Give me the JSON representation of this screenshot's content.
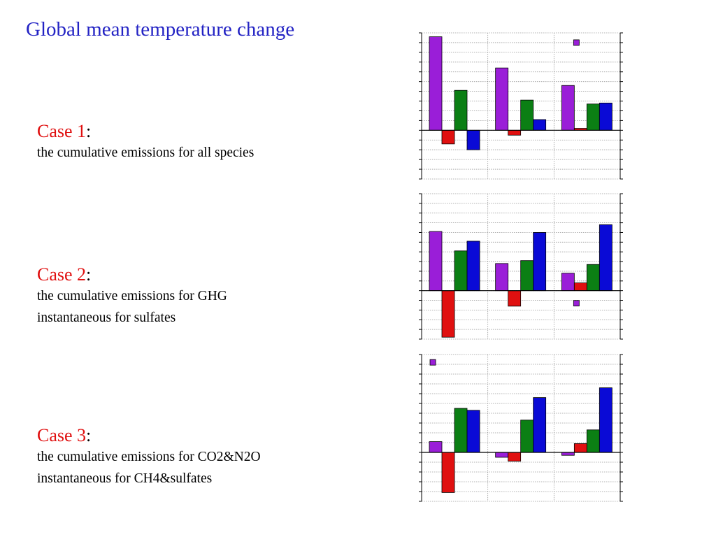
{
  "title": "Global mean temperature change",
  "cases": [
    {
      "label": "Case 1",
      "colon": ":",
      "lines": [
        "the cumulative emissions for all species"
      ]
    },
    {
      "label": "Case 2",
      "colon": ":",
      "lines": [
        "the cumulative emissions for GHG",
        "instantaneous for sulfates"
      ]
    },
    {
      "label": "Case 3",
      "colon": ":",
      "lines": [
        "the cumulative emissions for CO2&N2O",
        "instantaneous for CH4&sulfates"
      ]
    }
  ],
  "colors": {
    "purple": "#9a1ed8",
    "red": "#e01010",
    "green": "#0b7f14",
    "blue": "#0a0ad6",
    "title_blue": "#2323c4",
    "grid": "#9a9a9a"
  },
  "chart_data": [
    {
      "type": "bar",
      "ylim": [
        -5,
        10
      ],
      "grid": true,
      "groups": 3,
      "series": [
        {
          "color": "purple",
          "values": [
            9.6,
            6.4,
            4.6
          ]
        },
        {
          "color": "red",
          "values": [
            -1.4,
            -0.5,
            0.2
          ]
        },
        {
          "color": "green",
          "values": [
            4.1,
            3.1,
            2.7
          ]
        },
        {
          "color": "blue",
          "values": [
            -2.0,
            1.1,
            2.8
          ]
        }
      ],
      "marker": {
        "color": "purple",
        "group": 2,
        "value": 9.0
      }
    },
    {
      "type": "bar",
      "ylim": [
        -5,
        10
      ],
      "grid": true,
      "groups": 3,
      "series": [
        {
          "color": "purple",
          "values": [
            6.1,
            2.8,
            1.8
          ]
        },
        {
          "color": "red",
          "values": [
            -4.8,
            -1.6,
            0.8
          ]
        },
        {
          "color": "green",
          "values": [
            4.1,
            3.1,
            2.7
          ]
        },
        {
          "color": "blue",
          "values": [
            5.1,
            6.0,
            6.8
          ]
        }
      ],
      "marker": {
        "color": "purple",
        "group": 2,
        "value": -1.3
      }
    },
    {
      "type": "bar",
      "ylim": [
        -5,
        10
      ],
      "grid": true,
      "groups": 3,
      "series": [
        {
          "color": "purple",
          "values": [
            1.1,
            -0.5,
            -0.3
          ]
        },
        {
          "color": "red",
          "values": [
            -4.1,
            -0.9,
            0.9
          ]
        },
        {
          "color": "green",
          "values": [
            4.5,
            3.3,
            2.3
          ]
        },
        {
          "color": "blue",
          "values": [
            4.3,
            5.6,
            6.6
          ]
        }
      ],
      "marker": {
        "color": "purple",
        "group": 0,
        "value": 9.2
      }
    }
  ]
}
